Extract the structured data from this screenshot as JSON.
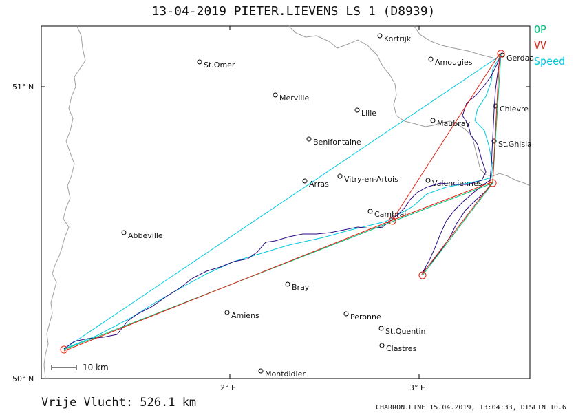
{
  "header": {
    "title": "13-04-2019    PIETER.LIEVENS    LS 1 (D8939)"
  },
  "legend": [
    {
      "label": "OP",
      "color": "#00c07a"
    },
    {
      "label": "VV",
      "color": "#e02010"
    },
    {
      "label": "Speed",
      "color": "#00c8e0"
    }
  ],
  "axes": {
    "lat_labels": [
      "51° N",
      "50° N"
    ],
    "lon_labels": [
      "2° E",
      "3° E"
    ]
  },
  "scale_bar": {
    "label": "10 km"
  },
  "cities": [
    {
      "name": "Kortrijk"
    },
    {
      "name": "St.Omer"
    },
    {
      "name": "Amougies"
    },
    {
      "name": "Gerdaa"
    },
    {
      "name": "Merville"
    },
    {
      "name": "Lille"
    },
    {
      "name": "Chievre"
    },
    {
      "name": "Maubray"
    },
    {
      "name": "Benifontaine"
    },
    {
      "name": "St.Ghisla"
    },
    {
      "name": "Arras"
    },
    {
      "name": "Vitry-en-Artois"
    },
    {
      "name": "Valenciennes"
    },
    {
      "name": "Cambrai"
    },
    {
      "name": "Abbeville"
    },
    {
      "name": "Bray"
    },
    {
      "name": "Amiens"
    },
    {
      "name": "Peronne"
    },
    {
      "name": "St.Quentin"
    },
    {
      "name": "Clastres"
    },
    {
      "name": "Montdidier"
    }
  ],
  "footer": {
    "distance": "Vrije Vlucht:  526.1 km",
    "credit": "CHARRON.LINE 15.04.2019, 13:04:33, DISLIN 10.6"
  },
  "colors": {
    "track": "#2a0a80",
    "op": "#00c07a",
    "vv": "#e02010",
    "speed": "#00c8e0",
    "border": "#9a9a9a",
    "coast": "#a0a0a0"
  }
}
